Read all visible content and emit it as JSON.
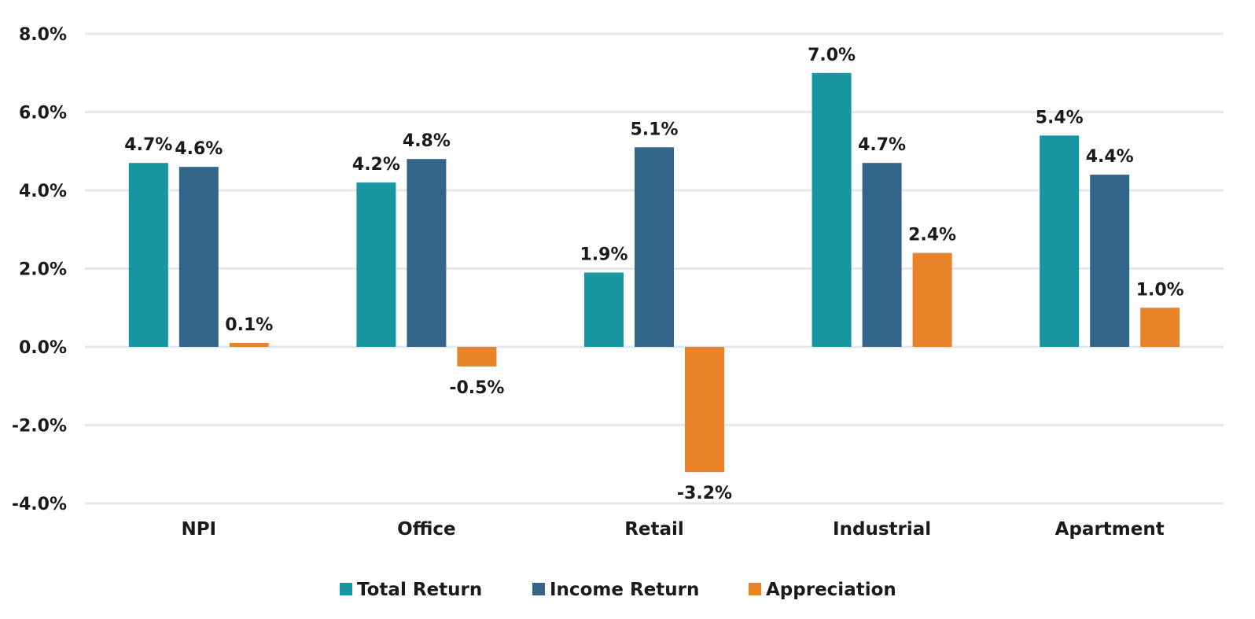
{
  "chart_data": {
    "type": "bar",
    "categories": [
      "NPI",
      "Office",
      "Retail",
      "Industrial",
      "Apartment"
    ],
    "series": [
      {
        "name": "Total Return",
        "color": "#1896a1",
        "values": [
          4.7,
          4.2,
          1.9,
          7.0,
          5.4
        ],
        "labels": [
          "4.7%",
          "4.2%",
          "1.9%",
          "7.0%",
          "5.4%"
        ]
      },
      {
        "name": "Income Return",
        "color": "#33648a",
        "values": [
          4.6,
          4.8,
          5.1,
          4.7,
          4.4
        ],
        "labels": [
          "4.6%",
          "4.8%",
          "5.1%",
          "4.7%",
          "4.4%"
        ]
      },
      {
        "name": "Appreciation",
        "color": "#e8832a",
        "values": [
          0.1,
          -0.5,
          -3.2,
          2.4,
          1.0
        ],
        "labels": [
          "0.1%",
          "-0.5%",
          "-3.2%",
          "2.4%",
          "1.0%"
        ]
      }
    ],
    "y_ticks": [
      8,
      6,
      4,
      2,
      0,
      -2,
      -4
    ],
    "y_tick_labels": [
      "8.0%",
      "6.0%",
      "4.0%",
      "2.0%",
      "0.0%",
      "-2.0%",
      "-4.0%"
    ],
    "ylim": [
      -4,
      8
    ],
    "grid": true,
    "legend": "bottom",
    "gridline_color": "#e2e8ec"
  }
}
